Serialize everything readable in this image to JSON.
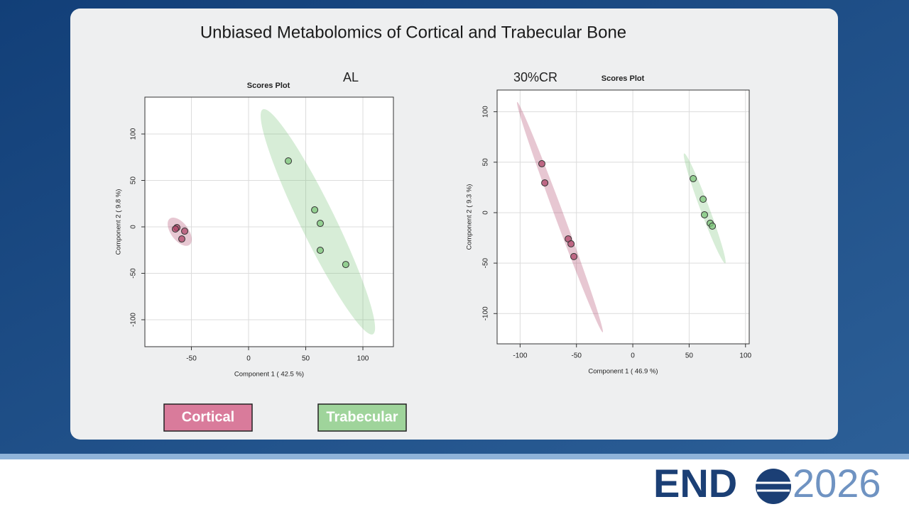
{
  "slide_title": "Unbiased Metabolomics of Cortical and Trabecular Bone",
  "logo": {
    "left": "END",
    "right": "2026"
  },
  "chart_data": [
    {
      "type": "scatter",
      "panel_label": "AL",
      "title": "Scores Plot",
      "x_label": "Component 1 ( 42.5 %)",
      "y_label": "Component 2 ( 9.8 %)",
      "xlim": [
        -90.7,
        126.7
      ],
      "ylim": [
        -129,
        139.7
      ],
      "xticks": [
        -50,
        0,
        50,
        100
      ],
      "yticks": [
        -100,
        -50,
        0,
        50,
        100
      ],
      "grid": true,
      "series": [
        {
          "name": "Cortical",
          "color": "#b0476a",
          "x": [
            -62.7,
            -64,
            -55.9,
            -58.4
          ],
          "values": [
            -0.8,
            -2.3,
            -4.6,
            -13
          ]
        },
        {
          "name": "Trabecular",
          "color": "#7cc47a",
          "x": [
            34.8,
            57.8,
            62.7,
            62.7,
            85
          ],
          "values": [
            71,
            18.3,
            3.8,
            -25.2,
            -40.5
          ]
        }
      ]
    },
    {
      "type": "scatter",
      "panel_label": "30%CR",
      "title": "Scores Plot",
      "x_label": "Component 1 ( 46.9 %)",
      "y_label": "Component 2 ( 9.3 %)",
      "xlim": [
        -120.4,
        103.3
      ],
      "ylim": [
        -130,
        121.5
      ],
      "xticks": [
        -100,
        -50,
        0,
        50,
        100
      ],
      "yticks": [
        -100,
        -50,
        0,
        50,
        100
      ],
      "grid": true,
      "series": [
        {
          "color": "#b0476a",
          "x": [
            -80.7,
            -78.1,
            -57.3,
            -54.8,
            -52.3
          ],
          "values": [
            48.5,
            29.5,
            -26,
            -30.9,
            -43.5
          ]
        },
        {
          "color": "#7cc47a",
          "x": [
            53.6,
            62.4,
            63.6,
            68.7,
            70.6
          ],
          "values": [
            33.7,
            13.3,
            -2.1,
            -10.5,
            -13.3
          ]
        }
      ]
    }
  ]
}
